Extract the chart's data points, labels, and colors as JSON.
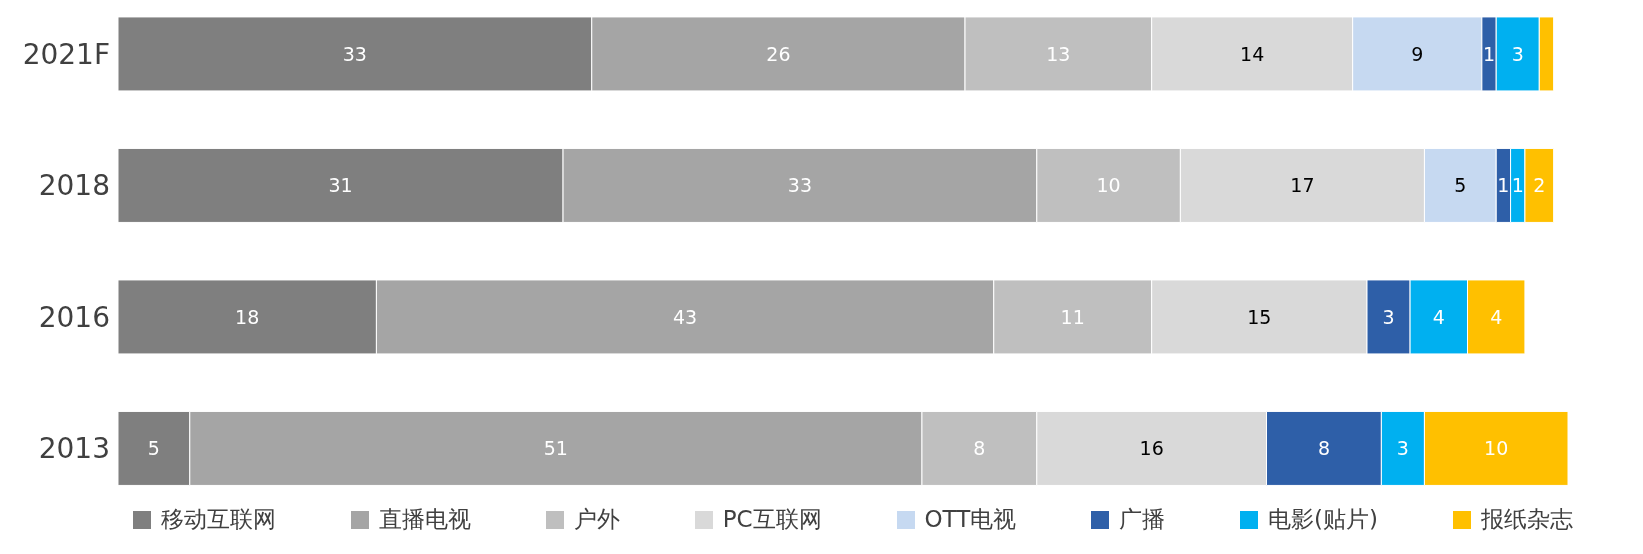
{
  "chart_data": {
    "type": "bar",
    "orientation": "horizontal",
    "stacked": true,
    "legend": "bottom",
    "categories": [
      "2021F",
      "2018",
      "2016",
      "2013"
    ],
    "series": [
      {
        "name": "移动互联网",
        "color": "#7f7f7f",
        "values": [
          33,
          31,
          18,
          5
        ],
        "value_labels": [
          "33",
          "31",
          "18",
          "5"
        ]
      },
      {
        "name": "直播电视",
        "color": "#a5a5a5",
        "values": [
          26,
          33,
          43,
          51
        ],
        "value_labels": [
          "26",
          "33",
          "43",
          "51"
        ]
      },
      {
        "name": "户外",
        "color": "#bfbfbf",
        "values": [
          13,
          10,
          11,
          8
        ],
        "value_labels": [
          "13",
          "10",
          "11",
          "8"
        ]
      },
      {
        "name": "PC互联网",
        "color": "#d9d9d9",
        "values": [
          14,
          17,
          15,
          16
        ],
        "value_labels": [
          "14",
          "17",
          "15",
          "16"
        ]
      },
      {
        "name": "OTT电视",
        "color": "#c6d9f1",
        "values": [
          9,
          5,
          null,
          null
        ],
        "value_labels": [
          "9",
          "5",
          null,
          null
        ]
      },
      {
        "name": "广播",
        "color": "#2e5fa8",
        "values": [
          1,
          1,
          3,
          8
        ],
        "value_labels": [
          "1",
          "1",
          "3",
          "8"
        ]
      },
      {
        "name": "电影(贴片)",
        "color": "#00b0f0",
        "values": [
          3,
          1,
          4,
          3
        ],
        "value_labels": [
          "3",
          "1",
          "4",
          "3"
        ]
      },
      {
        "name": "报纸杂志",
        "color": "#ffc000",
        "values": [
          1,
          2,
          4,
          10
        ],
        "value_labels": [
          null,
          "2",
          "4",
          "10"
        ]
      }
    ]
  }
}
